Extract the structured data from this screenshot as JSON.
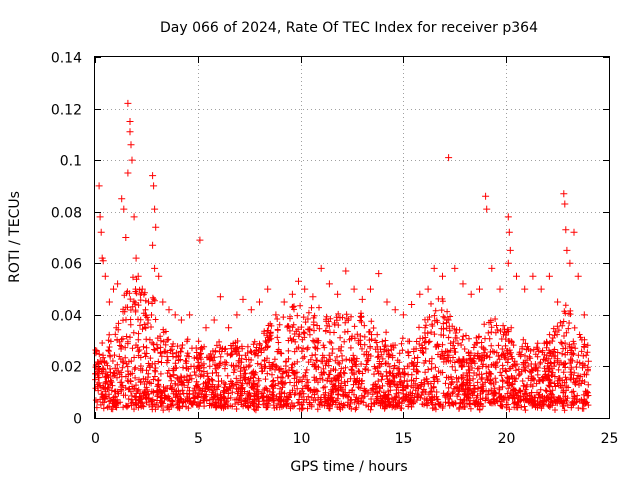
{
  "chart_data": {
    "type": "scatter",
    "title": "Day 066 of 2024, Rate Of TEC Index for receiver p364",
    "xlabel": "GPS time / hours",
    "ylabel": "ROTI / TECUs",
    "xlim": [
      0,
      25
    ],
    "ylim": [
      0,
      0.14
    ],
    "x_ticks": [
      0,
      5,
      10,
      15,
      20,
      25
    ],
    "x_tick_labels": [
      "0",
      "5",
      "10",
      "15",
      "20",
      "25"
    ],
    "y_ticks": [
      0,
      0.02,
      0.04,
      0.06,
      0.08,
      0.1,
      0.12,
      0.14
    ],
    "y_tick_labels": [
      "0",
      "0.02",
      "0.04",
      "0.06",
      "0.08",
      "0.1",
      "0.12",
      "0.14"
    ],
    "grid": true,
    "marker": "+",
    "marker_color": "#ff0000",
    "series": [
      {
        "name": "ROTI",
        "points": [
          [
            0.2,
            0.09
          ],
          [
            0.25,
            0.078
          ],
          [
            0.3,
            0.072
          ],
          [
            0.35,
            0.062
          ],
          [
            0.4,
            0.061
          ],
          [
            0.5,
            0.055
          ],
          [
            0.7,
            0.045
          ],
          [
            0.9,
            0.05
          ],
          [
            1.1,
            0.052
          ],
          [
            1.3,
            0.085
          ],
          [
            1.4,
            0.081
          ],
          [
            1.5,
            0.07
          ],
          [
            1.6,
            0.122
          ],
          [
            1.7,
            0.115
          ],
          [
            1.7,
            0.111
          ],
          [
            1.75,
            0.106
          ],
          [
            1.8,
            0.1
          ],
          [
            1.6,
            0.095
          ],
          [
            1.9,
            0.078
          ],
          [
            2.0,
            0.062
          ],
          [
            2.1,
            0.055
          ],
          [
            2.3,
            0.05
          ],
          [
            2.6,
            0.045
          ],
          [
            2.8,
            0.094
          ],
          [
            2.85,
            0.09
          ],
          [
            2.9,
            0.081
          ],
          [
            2.95,
            0.074
          ],
          [
            2.8,
            0.067
          ],
          [
            2.9,
            0.058
          ],
          [
            3.1,
            0.055
          ],
          [
            3.3,
            0.045
          ],
          [
            3.6,
            0.042
          ],
          [
            3.9,
            0.04
          ],
          [
            4.2,
            0.038
          ],
          [
            4.6,
            0.04
          ],
          [
            5.1,
            0.069
          ],
          [
            5.4,
            0.035
          ],
          [
            5.8,
            0.038
          ],
          [
            6.1,
            0.047
          ],
          [
            6.5,
            0.035
          ],
          [
            6.9,
            0.04
          ],
          [
            7.2,
            0.046
          ],
          [
            7.6,
            0.042
          ],
          [
            8.0,
            0.045
          ],
          [
            8.4,
            0.05
          ],
          [
            8.8,
            0.04
          ],
          [
            9.2,
            0.045
          ],
          [
            9.6,
            0.048
          ],
          [
            9.9,
            0.053
          ],
          [
            10.2,
            0.05
          ],
          [
            10.6,
            0.047
          ],
          [
            11.0,
            0.058
          ],
          [
            11.4,
            0.052
          ],
          [
            11.8,
            0.048
          ],
          [
            12.2,
            0.057
          ],
          [
            12.6,
            0.05
          ],
          [
            13.0,
            0.046
          ],
          [
            13.4,
            0.05
          ],
          [
            13.8,
            0.056
          ],
          [
            14.2,
            0.045
          ],
          [
            14.6,
            0.042
          ],
          [
            15.0,
            0.04
          ],
          [
            15.4,
            0.044
          ],
          [
            15.8,
            0.048
          ],
          [
            16.2,
            0.05
          ],
          [
            16.5,
            0.058
          ],
          [
            16.9,
            0.055
          ],
          [
            17.2,
            0.101
          ],
          [
            17.5,
            0.058
          ],
          [
            17.9,
            0.052
          ],
          [
            18.3,
            0.048
          ],
          [
            18.7,
            0.05
          ],
          [
            19.0,
            0.086
          ],
          [
            19.05,
            0.081
          ],
          [
            19.3,
            0.058
          ],
          [
            19.7,
            0.05
          ],
          [
            20.1,
            0.078
          ],
          [
            20.15,
            0.072
          ],
          [
            20.2,
            0.065
          ],
          [
            20.1,
            0.06
          ],
          [
            20.5,
            0.055
          ],
          [
            20.9,
            0.05
          ],
          [
            21.3,
            0.055
          ],
          [
            21.7,
            0.05
          ],
          [
            22.1,
            0.055
          ],
          [
            22.5,
            0.045
          ],
          [
            22.8,
            0.087
          ],
          [
            22.85,
            0.083
          ],
          [
            22.9,
            0.073
          ],
          [
            22.95,
            0.065
          ],
          [
            23.1,
            0.06
          ],
          [
            23.3,
            0.072
          ],
          [
            23.5,
            0.055
          ],
          [
            23.8,
            0.04
          ],
          [
            24.0,
            0.022
          ]
        ]
      }
    ]
  }
}
